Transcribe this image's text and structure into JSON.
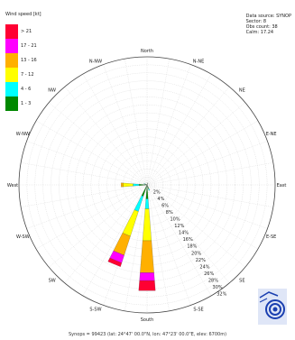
{
  "legend": {
    "title": "Wind speed [kt]",
    "items": [
      {
        "label": "> 21",
        "color": "#ff0033"
      },
      {
        "label": "17 - 21",
        "color": "#ff00ff"
      },
      {
        "label": "13 - 16",
        "color": "#ffb000"
      },
      {
        "label": "7 - 12",
        "color": "#ffff00"
      },
      {
        "label": "4 - 6",
        "color": "#00ffff"
      },
      {
        "label": "1 - 3",
        "color": "#008800"
      }
    ]
  },
  "info": {
    "line1": "Data source: SYNOP",
    "line2": "Sector: 8",
    "line3": "Obs count: 38",
    "line4": "Calm: 17.24"
  },
  "footer": "Synops = 99423 (lat: 24°47' 00.0\"N, lon: 47°23' 00.0\"E, elev: 6700m)",
  "chart_data": {
    "type": "polar-bar",
    "title": "",
    "direction_labels": [
      "North",
      "N-NE",
      "NE",
      "E-NE",
      "East",
      "E-SE",
      "SE",
      "S-SE",
      "South",
      "S-SW",
      "SW",
      "W-SW",
      "West",
      "W-NW",
      "NW",
      "N-NW"
    ],
    "radial_tick_labels": [
      "2%",
      "4%",
      "6%",
      "8%",
      "10%",
      "12%",
      "14%",
      "16%",
      "18%",
      "20%",
      "22%",
      "24%",
      "26%",
      "28%",
      "30%",
      "32%"
    ],
    "radial_max": 32,
    "speed_classes": [
      "1 - 3",
      "4 - 6",
      "7 - 12",
      "13 - 16",
      "17 - 21",
      "> 21"
    ],
    "series": [
      {
        "direction": "South",
        "angle": 180,
        "values": [
          3.5,
          2.5,
          8,
          8,
          2,
          2.5
        ]
      },
      {
        "direction": "S-SW",
        "angle": 202.5,
        "values": [
          3,
          4,
          6.5,
          5,
          2,
          1
        ]
      },
      {
        "direction": "West",
        "angle": 270,
        "values": [
          2,
          1.5,
          2.5,
          0.5,
          0,
          0
        ]
      },
      {
        "direction": "S-SE",
        "angle": 157.5,
        "values": [
          1,
          0.5,
          0,
          0,
          0,
          0
        ]
      },
      {
        "direction": "N-NE",
        "angle": 22.5,
        "values": [
          0.5,
          0,
          0,
          0,
          0,
          0
        ]
      },
      {
        "direction": "W-NW",
        "angle": 292.5,
        "values": [
          0.5,
          0.3,
          0,
          0,
          0,
          0
        ]
      }
    ],
    "grid": true
  }
}
